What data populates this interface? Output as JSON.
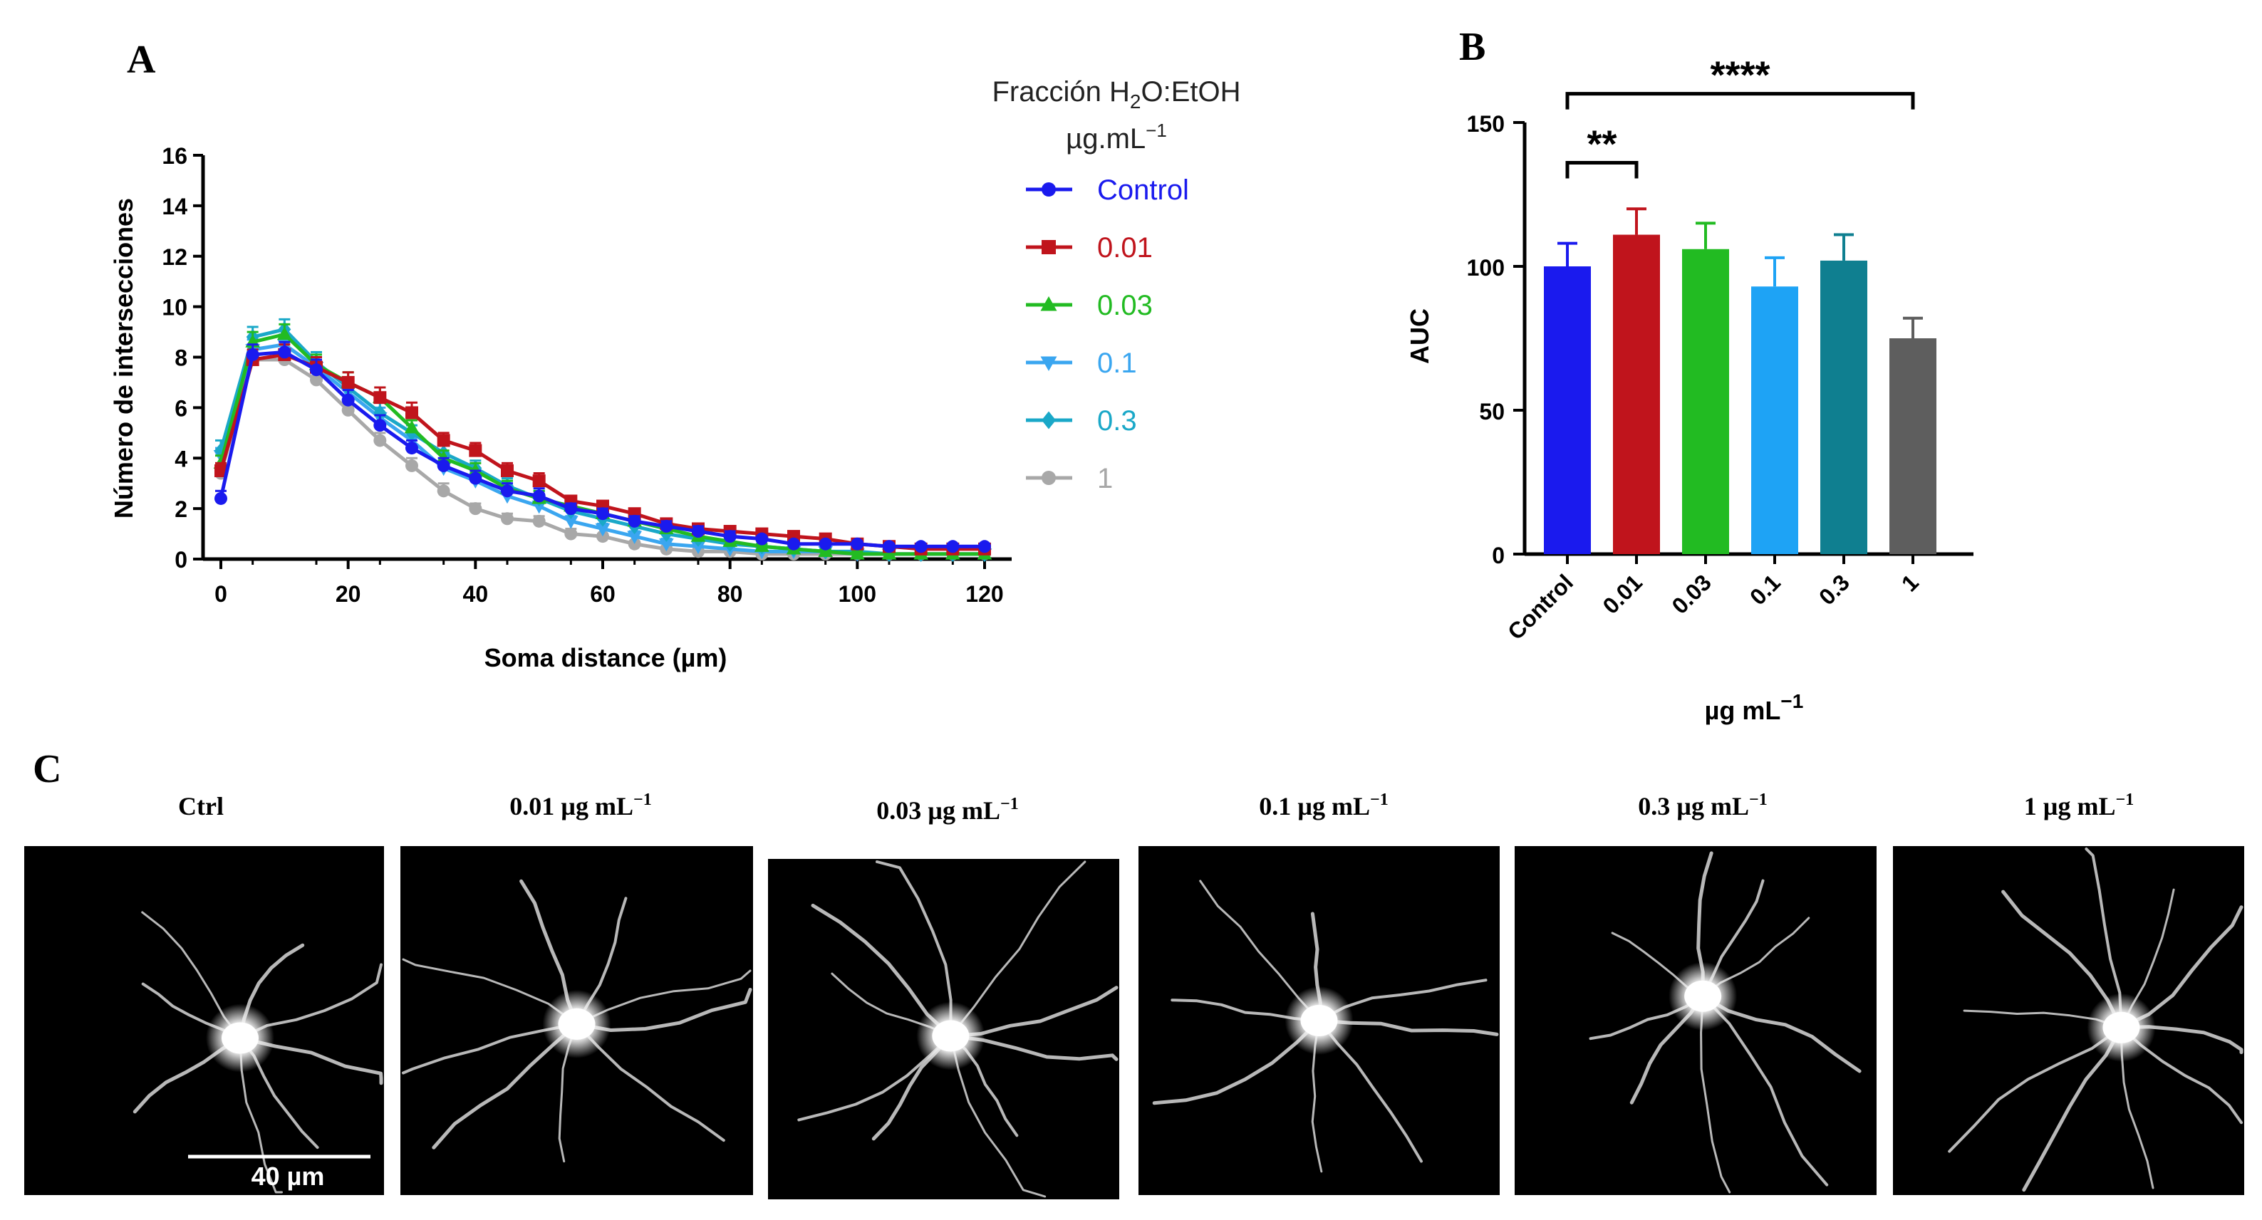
{
  "panel_labels": {
    "a": "A",
    "b": "B",
    "c": "C"
  },
  "chart_data": [
    {
      "type": "line",
      "panel": "A",
      "xlabel": "Soma distance (µm)",
      "ylabel": "Número de intersecciones",
      "xlim": [
        0,
        120
      ],
      "ylim": [
        0,
        16
      ],
      "xticks": [
        0,
        20,
        40,
        60,
        80,
        100,
        120
      ],
      "yticks": [
        0,
        2,
        4,
        6,
        8,
        10,
        12,
        14,
        16
      ],
      "legend_title_line1": "Fracción H",
      "legend_title_sub": "2",
      "legend_title_rest": "O:EtOH",
      "legend_title_line2": "µg.mL",
      "legend_title_sup": "−1",
      "x": [
        0,
        5,
        10,
        15,
        20,
        25,
        30,
        35,
        40,
        45,
        50,
        55,
        60,
        65,
        70,
        75,
        80,
        85,
        90,
        95,
        100,
        105,
        110,
        115,
        120
      ],
      "series": [
        {
          "name": "Control",
          "color": "#1a1aee",
          "marker": "circle",
          "values": [
            2.4,
            8.1,
            8.2,
            7.5,
            6.3,
            5.3,
            4.4,
            3.7,
            3.2,
            2.7,
            2.5,
            2.0,
            1.8,
            1.5,
            1.3,
            1.1,
            0.9,
            0.8,
            0.6,
            0.6,
            0.6,
            0.5,
            0.5,
            0.5,
            0.5
          ],
          "errors": [
            0.3,
            0.4,
            0.4,
            0.4,
            0.4,
            0.4,
            0.3,
            0.3,
            0.3,
            0.3,
            0.3,
            0.2,
            0.2,
            0.2,
            0.2,
            0.2,
            0.2,
            0.1,
            0.1,
            0.1,
            0.1,
            0.1,
            0.1,
            0.1,
            0.1
          ]
        },
        {
          "name": "0.01",
          "color": "#c0141c",
          "marker": "square",
          "values": [
            3.5,
            7.9,
            8.1,
            7.6,
            7.0,
            6.4,
            5.8,
            4.7,
            4.3,
            3.5,
            3.1,
            2.3,
            2.1,
            1.8,
            1.4,
            1.2,
            1.1,
            1.0,
            0.9,
            0.8,
            0.6,
            0.5,
            0.4,
            0.4,
            0.4
          ],
          "errors": [
            0.3,
            0.4,
            0.4,
            0.4,
            0.4,
            0.4,
            0.4,
            0.3,
            0.3,
            0.3,
            0.3,
            0.2,
            0.2,
            0.2,
            0.2,
            0.2,
            0.2,
            0.1,
            0.1,
            0.1,
            0.1,
            0.1,
            0.1,
            0.1,
            0.1
          ]
        },
        {
          "name": "0.03",
          "color": "#22bb22",
          "marker": "triangle-up",
          "values": [
            3.8,
            8.6,
            8.9,
            7.7,
            7.0,
            6.4,
            5.2,
            4.0,
            3.5,
            2.8,
            2.4,
            2.1,
            1.8,
            1.5,
            1.2,
            0.9,
            0.7,
            0.5,
            0.4,
            0.3,
            0.2,
            0.2,
            0.2,
            0.2,
            0.2
          ],
          "errors": [
            0.3,
            0.4,
            0.4,
            0.4,
            0.4,
            0.4,
            0.3,
            0.3,
            0.3,
            0.3,
            0.3,
            0.2,
            0.2,
            0.2,
            0.2,
            0.2,
            0.2,
            0.1,
            0.1,
            0.1,
            0.1,
            0.1,
            0.1,
            0.1,
            0.1
          ]
        },
        {
          "name": "0.1",
          "color": "#3aa6f0",
          "marker": "triangle-down",
          "values": [
            4.1,
            8.3,
            8.5,
            7.6,
            6.6,
            5.6,
            4.7,
            3.6,
            3.1,
            2.5,
            2.1,
            1.5,
            1.2,
            0.9,
            0.6,
            0.5,
            0.4,
            0.3,
            0.3,
            0.3,
            0.2,
            0.2,
            0.2,
            0.2,
            0.2
          ],
          "errors": [
            0.3,
            0.4,
            0.4,
            0.4,
            0.4,
            0.4,
            0.3,
            0.3,
            0.3,
            0.3,
            0.3,
            0.2,
            0.2,
            0.2,
            0.2,
            0.2,
            0.2,
            0.1,
            0.1,
            0.1,
            0.1,
            0.1,
            0.1,
            0.1,
            0.1
          ]
        },
        {
          "name": "0.3",
          "color": "#1aa8c8",
          "marker": "diamond",
          "values": [
            4.3,
            8.8,
            9.1,
            7.8,
            6.8,
            5.8,
            5.0,
            4.2,
            3.6,
            2.9,
            2.4,
            1.9,
            1.6,
            1.3,
            1.0,
            0.8,
            0.6,
            0.5,
            0.4,
            0.3,
            0.3,
            0.2,
            0.2,
            0.2,
            0.2
          ],
          "errors": [
            0.4,
            0.4,
            0.4,
            0.4,
            0.4,
            0.4,
            0.3,
            0.3,
            0.3,
            0.3,
            0.3,
            0.2,
            0.2,
            0.2,
            0.2,
            0.2,
            0.2,
            0.1,
            0.1,
            0.1,
            0.1,
            0.1,
            0.1,
            0.1,
            0.1
          ]
        },
        {
          "name": "1",
          "color": "#a8a8a8",
          "marker": "circle",
          "values": [
            3.4,
            7.9,
            7.9,
            7.1,
            5.9,
            4.7,
            3.7,
            2.7,
            2.0,
            1.6,
            1.5,
            1.0,
            0.9,
            0.6,
            0.4,
            0.3,
            0.3,
            0.2,
            0.2,
            0.2,
            0.2,
            0.2,
            0.2,
            0.2,
            0.2
          ],
          "errors": [
            0.3,
            0.4,
            0.4,
            0.4,
            0.4,
            0.3,
            0.3,
            0.3,
            0.2,
            0.2,
            0.2,
            0.2,
            0.1,
            0.1,
            0.1,
            0.1,
            0.1,
            0.1,
            0.1,
            0.1,
            0.1,
            0.1,
            0.1,
            0.1,
            0.1
          ]
        }
      ]
    },
    {
      "type": "bar",
      "panel": "B",
      "ylabel": "AUC",
      "xlabel_main": "µg mL",
      "xlabel_sup": "−1",
      "ylim": [
        0,
        150
      ],
      "yticks": [
        0,
        50,
        100,
        150
      ],
      "categories": [
        "Control",
        "0.01",
        "0.03",
        "0.1",
        "0.3",
        "1"
      ],
      "values": [
        100,
        111,
        106,
        93,
        102,
        75
      ],
      "errors": [
        8,
        9,
        9,
        10,
        9,
        7
      ],
      "colors": [
        "#1a1aee",
        "#c0141c",
        "#22bb22",
        "#1ea3f5",
        "#0f7f90",
        "#5e5e5e"
      ],
      "significance": [
        {
          "from": "Control",
          "to": "0.01",
          "label": "**"
        },
        {
          "from": "Control",
          "to": "1",
          "label": "****"
        }
      ]
    }
  ],
  "panel_c": {
    "captions": [
      {
        "main": "Ctrl",
        "sup": ""
      },
      {
        "main": "0.01 µg mL",
        "sup": "−1"
      },
      {
        "main": "0.03 µg mL",
        "sup": "−1"
      },
      {
        "main": "0.1 µg mL",
        "sup": "−1"
      },
      {
        "main": "0.3 µg mL",
        "sup": "−1"
      },
      {
        "main": "1 µg mL",
        "sup": "−1"
      }
    ],
    "scale_bar_label": "40 µm"
  }
}
